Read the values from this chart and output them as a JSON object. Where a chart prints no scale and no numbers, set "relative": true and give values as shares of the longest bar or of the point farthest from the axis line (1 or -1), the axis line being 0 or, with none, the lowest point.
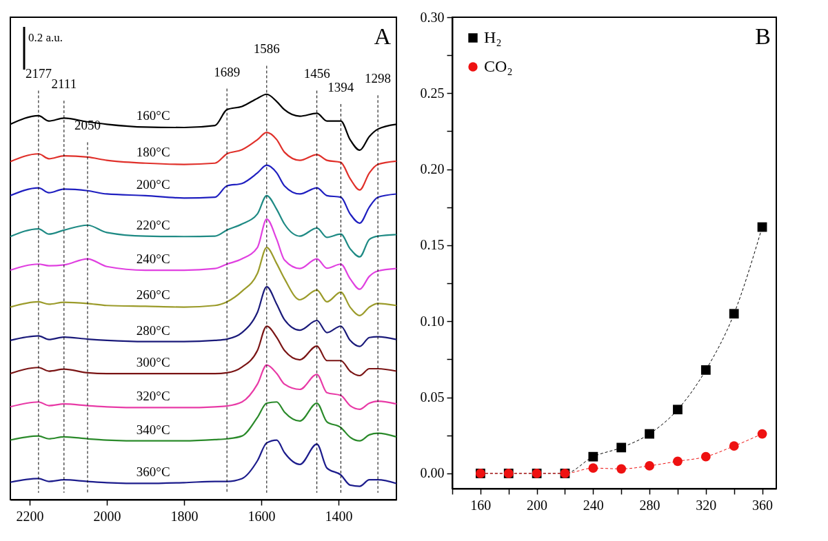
{
  "chart_data": [
    {
      "type": "line",
      "relative": true,
      "annotations": [
        "0.2 a.u.",
        "A"
      ],
      "legend": false,
      "grid": false,
      "line_style": "solid",
      "x": [
        2250,
        2177,
        2150,
        2111,
        2050,
        2000,
        1900,
        1800,
        1720,
        1689,
        1650,
        1610,
        1586,
        1560,
        1540,
        1500,
        1456,
        1430,
        1394,
        1370,
        1345,
        1320,
        1298,
        1250
      ],
      "xlim": [
        2250,
        1250
      ],
      "xticks": [
        2200,
        2000,
        1800,
        1600,
        1400
      ],
      "ref_lines": [
        {
          "axis": "x",
          "value": 2177,
          "label": "2177",
          "line_style": "dashed",
          "color": "#000000"
        },
        {
          "axis": "x",
          "value": 2111,
          "label": "2111",
          "line_style": "dashed",
          "color": "#000000"
        },
        {
          "axis": "x",
          "value": 2050,
          "label": "2050",
          "line_style": "dashed",
          "color": "#000000"
        },
        {
          "axis": "x",
          "value": 1689,
          "label": "1689",
          "line_style": "dashed",
          "color": "#000000"
        },
        {
          "axis": "x",
          "value": 1586,
          "label": "1586",
          "line_style": "dashed",
          "color": "#000000"
        },
        {
          "axis": "x",
          "value": 1456,
          "label": "1456",
          "line_style": "dashed",
          "color": "#000000"
        },
        {
          "axis": "x",
          "value": 1394,
          "label": "1394",
          "line_style": "dashed",
          "color": "#000000"
        },
        {
          "axis": "x",
          "value": 1298,
          "label": "1298",
          "line_style": "dashed",
          "color": "#000000"
        }
      ],
      "series": [
        {
          "name": "160°C",
          "color": "#000000",
          "values": [
            0.926,
            0.947,
            0.934,
            0.941,
            0.932,
            0.926,
            0.919,
            0.918,
            0.923,
            0.962,
            0.97,
            0.99,
            1,
            0.982,
            0.962,
            0.946,
            0.953,
            0.934,
            0.934,
            0.888,
            0.862,
            0.896,
            0.914,
            0.926
          ]
        },
        {
          "name": "180°C",
          "color": "#e0302a",
          "values": [
            0.834,
            0.853,
            0.841,
            0.848,
            0.845,
            0.837,
            0.83,
            0.827,
            0.83,
            0.853,
            0.863,
            0.888,
            0.906,
            0.888,
            0.857,
            0.837,
            0.851,
            0.837,
            0.832,
            0.792,
            0.764,
            0.806,
            0.827,
            0.835
          ]
        },
        {
          "name": "200°C",
          "color": "#1f1fc0",
          "values": [
            0.75,
            0.769,
            0.757,
            0.766,
            0.762,
            0.754,
            0.75,
            0.744,
            0.746,
            0.774,
            0.78,
            0.806,
            0.825,
            0.806,
            0.774,
            0.754,
            0.769,
            0.75,
            0.746,
            0.705,
            0.682,
            0.722,
            0.746,
            0.754
          ]
        },
        {
          "name": "220°C",
          "color": "#1e8a84",
          "values": [
            0.649,
            0.668,
            0.655,
            0.665,
            0.677,
            0.659,
            0.65,
            0.649,
            0.65,
            0.665,
            0.68,
            0.705,
            0.75,
            0.716,
            0.68,
            0.65,
            0.67,
            0.647,
            0.655,
            0.619,
            0.599,
            0.642,
            0.65,
            0.654
          ]
        },
        {
          "name": "240°C",
          "color": "#e040e0",
          "values": [
            0.566,
            0.581,
            0.577,
            0.579,
            0.594,
            0.575,
            0.566,
            0.566,
            0.57,
            0.581,
            0.594,
            0.622,
            0.692,
            0.642,
            0.591,
            0.57,
            0.594,
            0.571,
            0.581,
            0.545,
            0.519,
            0.551,
            0.564,
            0.57
          ]
        },
        {
          "name": "260°C",
          "color": "#9b9b2a",
          "values": [
            0.475,
            0.488,
            0.482,
            0.487,
            0.484,
            0.479,
            0.477,
            0.475,
            0.479,
            0.488,
            0.514,
            0.558,
            0.622,
            0.582,
            0.545,
            0.493,
            0.517,
            0.488,
            0.512,
            0.475,
            0.454,
            0.475,
            0.484,
            0.479
          ]
        },
        {
          "name": "280°C",
          "color": "#1a1a7a",
          "values": [
            0.393,
            0.404,
            0.395,
            0.401,
            0.396,
            0.393,
            0.39,
            0.39,
            0.393,
            0.396,
            0.412,
            0.462,
            0.525,
            0.482,
            0.444,
            0.418,
            0.442,
            0.412,
            0.428,
            0.393,
            0.378,
            0.4,
            0.402,
            0.395
          ]
        },
        {
          "name": "300°C",
          "color": "#7a1414",
          "values": [
            0.311,
            0.326,
            0.317,
            0.322,
            0.313,
            0.311,
            0.311,
            0.311,
            0.311,
            0.313,
            0.327,
            0.368,
            0.428,
            0.4,
            0.368,
            0.345,
            0.379,
            0.343,
            0.343,
            0.317,
            0.306,
            0.323,
            0.323,
            0.317
          ]
        },
        {
          "name": "320°C",
          "color": "#e83aa6",
          "values": [
            0.229,
            0.241,
            0.232,
            0.236,
            0.232,
            0.229,
            0.227,
            0.227,
            0.229,
            0.231,
            0.241,
            0.285,
            0.332,
            0.311,
            0.285,
            0.272,
            0.309,
            0.264,
            0.257,
            0.232,
            0.223,
            0.238,
            0.243,
            0.236
          ]
        },
        {
          "name": "340°C",
          "color": "#2a8a2a",
          "values": [
            0.147,
            0.157,
            0.15,
            0.155,
            0.15,
            0.147,
            0.145,
            0.145,
            0.148,
            0.15,
            0.157,
            0.203,
            0.238,
            0.241,
            0.216,
            0.194,
            0.238,
            0.192,
            0.178,
            0.154,
            0.145,
            0.16,
            0.164,
            0.155
          ]
        },
        {
          "name": "360°C",
          "color": "#1c1c8c",
          "values": [
            0.043,
            0.052,
            0.045,
            0.049,
            0.045,
            0.042,
            0.04,
            0.042,
            0.045,
            0.045,
            0.052,
            0.096,
            0.14,
            0.147,
            0.116,
            0.087,
            0.137,
            0.078,
            0.061,
            0.036,
            0.033,
            0.049,
            0.049,
            0.04
          ]
        }
      ]
    },
    {
      "type": "line",
      "annotations": [
        "B"
      ],
      "legend": "top left",
      "grid": false,
      "line_style": "dashed",
      "x": [
        160,
        180,
        200,
        220,
        240,
        260,
        280,
        300,
        320,
        340,
        360
      ],
      "xlim": [
        140,
        370
      ],
      "xticks": [
        {
          "value": 140,
          "label": null
        },
        160,
        {
          "value": 180,
          "label": null
        },
        200,
        {
          "value": 220,
          "label": null
        },
        240,
        {
          "value": 260,
          "label": null
        },
        280,
        {
          "value": 300,
          "label": null
        },
        320,
        {
          "value": 340,
          "label": null
        },
        360
      ],
      "ylim": [
        -0.01,
        0.3
      ],
      "yticks": [
        {
          "value": 0,
          "label": "0.00"
        },
        {
          "value": 0.025,
          "label": null
        },
        {
          "value": 0.05,
          "label": "0.05"
        },
        {
          "value": 0.075,
          "label": null
        },
        {
          "value": 0.1,
          "label": "0.10"
        },
        {
          "value": 0.125,
          "label": null
        },
        {
          "value": 0.15,
          "label": "0.15"
        },
        {
          "value": 0.175,
          "label": null
        },
        {
          "value": 0.2,
          "label": "0.20"
        },
        {
          "value": 0.225,
          "label": null
        },
        {
          "value": 0.25,
          "label": "0.25"
        },
        {
          "value": 0.275,
          "label": null
        },
        {
          "value": 0.3,
          "label": "0.30"
        }
      ],
      "series": [
        {
          "name": "H₂",
          "color": "#000000",
          "marker": "square",
          "values": [
            0,
            0,
            0,
            0,
            0.011,
            0.017,
            0.026,
            0.042,
            0.068,
            0.105,
            0.162
          ]
        },
        {
          "name": "CO₂",
          "color": "#ee1111",
          "marker": "circle",
          "values": [
            0,
            0,
            0,
            0,
            0.0035,
            0.003,
            0.005,
            0.008,
            0.011,
            0.018,
            0.026
          ]
        }
      ]
    }
  ]
}
